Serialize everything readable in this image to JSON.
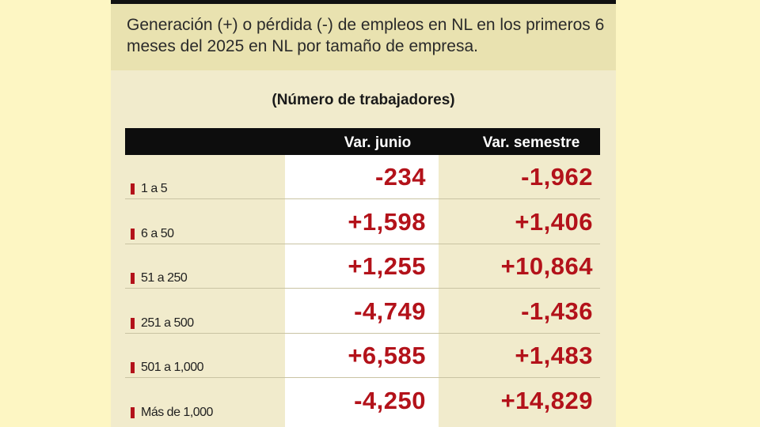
{
  "header": {
    "text": "Generación (+) o pérdida (-) de empleos en NL en los primeros 6 meses del 2025 en NL por tamaño de empresa."
  },
  "chart_data": {
    "type": "table",
    "subtitle": "(Número de trabajadores)",
    "columns": [
      "Var. junio",
      "Var. semestre"
    ],
    "rows": [
      {
        "label": "1 a 5",
        "var_junio": "-234",
        "var_semestre": "-1,962"
      },
      {
        "label": "6 a 50",
        "var_junio": "+1,598",
        "var_semestre": "+1,406"
      },
      {
        "label": "51 a 250",
        "var_junio": "+1,255",
        "var_semestre": "+10,864"
      },
      {
        "label": "251 a 500",
        "var_junio": "-4,749",
        "var_semestre": "-1,436"
      },
      {
        "label": "501 a 1,000",
        "var_junio": "+6,585",
        "var_semestre": "+1,483"
      },
      {
        "label": "Más de 1,000",
        "var_junio": "-4,250",
        "var_semestre": "+14,829"
      }
    ]
  },
  "colors": {
    "accent": "#b3121a",
    "background": "#fdf6c3",
    "panel": "#f1ebcc",
    "header_band": "#e9e2b0"
  }
}
